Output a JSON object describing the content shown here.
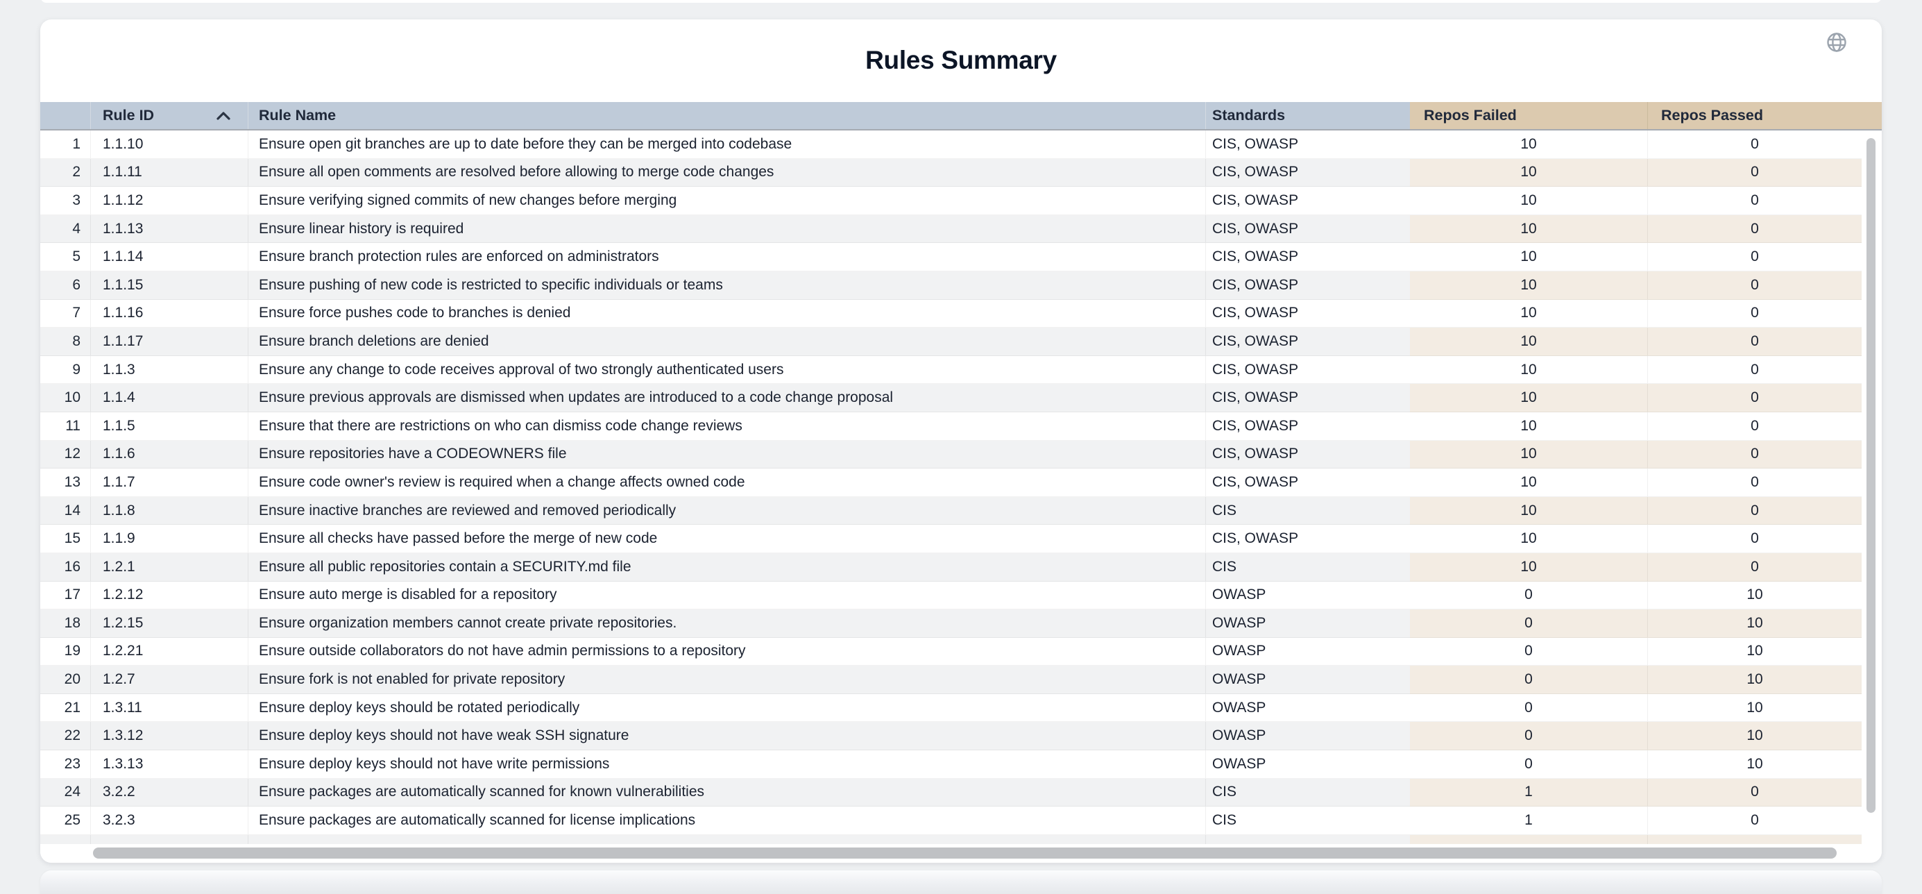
{
  "header": {
    "title": "Rules Summary",
    "globe_icon": "globe"
  },
  "table": {
    "columns": [
      {
        "key": "index",
        "label": ""
      },
      {
        "key": "rule_id",
        "label": "Rule ID",
        "sorted": "asc"
      },
      {
        "key": "rule_name",
        "label": "Rule Name"
      },
      {
        "key": "standards",
        "label": "Standards"
      },
      {
        "key": "repos_failed",
        "label": "Repos Failed"
      },
      {
        "key": "repos_passed",
        "label": "Repos Passed"
      }
    ],
    "rows": [
      {
        "index": 1,
        "rule_id": "1.1.10",
        "rule_name": "Ensure open git branches are up to date before they can be merged into codebase",
        "standards": "CIS, OWASP",
        "repos_failed": 10,
        "repos_passed": 0
      },
      {
        "index": 2,
        "rule_id": "1.1.11",
        "rule_name": "Ensure all open comments are resolved before allowing to merge code changes",
        "standards": "CIS, OWASP",
        "repos_failed": 10,
        "repos_passed": 0
      },
      {
        "index": 3,
        "rule_id": "1.1.12",
        "rule_name": "Ensure verifying signed commits of new changes before merging",
        "standards": "CIS, OWASP",
        "repos_failed": 10,
        "repos_passed": 0
      },
      {
        "index": 4,
        "rule_id": "1.1.13",
        "rule_name": "Ensure linear history is required",
        "standards": "CIS, OWASP",
        "repos_failed": 10,
        "repos_passed": 0
      },
      {
        "index": 5,
        "rule_id": "1.1.14",
        "rule_name": "Ensure branch protection rules are enforced on administrators",
        "standards": "CIS, OWASP",
        "repos_failed": 10,
        "repos_passed": 0
      },
      {
        "index": 6,
        "rule_id": "1.1.15",
        "rule_name": "Ensure pushing of new code is restricted to specific individuals or teams",
        "standards": "CIS, OWASP",
        "repos_failed": 10,
        "repos_passed": 0
      },
      {
        "index": 7,
        "rule_id": "1.1.16",
        "rule_name": "Ensure force pushes code to branches is denied",
        "standards": "CIS, OWASP",
        "repos_failed": 10,
        "repos_passed": 0
      },
      {
        "index": 8,
        "rule_id": "1.1.17",
        "rule_name": "Ensure branch deletions are denied",
        "standards": "CIS, OWASP",
        "repos_failed": 10,
        "repos_passed": 0
      },
      {
        "index": 9,
        "rule_id": "1.1.3",
        "rule_name": "Ensure any change to code receives approval of two strongly authenticated users",
        "standards": "CIS, OWASP",
        "repos_failed": 10,
        "repos_passed": 0
      },
      {
        "index": 10,
        "rule_id": "1.1.4",
        "rule_name": "Ensure previous approvals are dismissed when updates are introduced to a code change proposal",
        "standards": "CIS, OWASP",
        "repos_failed": 10,
        "repos_passed": 0
      },
      {
        "index": 11,
        "rule_id": "1.1.5",
        "rule_name": "Ensure that there are restrictions on who can dismiss code change reviews",
        "standards": "CIS, OWASP",
        "repos_failed": 10,
        "repos_passed": 0
      },
      {
        "index": 12,
        "rule_id": "1.1.6",
        "rule_name": "Ensure repositories have a CODEOWNERS file",
        "standards": "CIS, OWASP",
        "repos_failed": 10,
        "repos_passed": 0
      },
      {
        "index": 13,
        "rule_id": "1.1.7",
        "rule_name": "Ensure code owner's review is required when a change affects owned code",
        "standards": "CIS, OWASP",
        "repos_failed": 10,
        "repos_passed": 0
      },
      {
        "index": 14,
        "rule_id": "1.1.8",
        "rule_name": "Ensure inactive branches are reviewed and removed periodically",
        "standards": "CIS",
        "repos_failed": 10,
        "repos_passed": 0
      },
      {
        "index": 15,
        "rule_id": "1.1.9",
        "rule_name": "Ensure all checks have passed before the merge of new code",
        "standards": "CIS, OWASP",
        "repos_failed": 10,
        "repos_passed": 0
      },
      {
        "index": 16,
        "rule_id": "1.2.1",
        "rule_name": "Ensure all public repositories contain a SECURITY.md file",
        "standards": "CIS",
        "repos_failed": 10,
        "repos_passed": 0
      },
      {
        "index": 17,
        "rule_id": "1.2.12",
        "rule_name": "Ensure auto merge is disabled for a repository",
        "standards": "OWASP",
        "repos_failed": 0,
        "repos_passed": 10
      },
      {
        "index": 18,
        "rule_id": "1.2.15",
        "rule_name": "Ensure organization members cannot create private repositories.",
        "standards": "OWASP",
        "repos_failed": 0,
        "repos_passed": 10
      },
      {
        "index": 19,
        "rule_id": "1.2.21",
        "rule_name": "Ensure outside collaborators do not have admin permissions to a repository",
        "standards": "OWASP",
        "repos_failed": 0,
        "repos_passed": 10
      },
      {
        "index": 20,
        "rule_id": "1.2.7",
        "rule_name": "Ensure fork is not enabled for private repository",
        "standards": "OWASP",
        "repos_failed": 0,
        "repos_passed": 10
      },
      {
        "index": 21,
        "rule_id": "1.3.11",
        "rule_name": "Ensure deploy keys should be rotated periodically",
        "standards": "OWASP",
        "repos_failed": 0,
        "repos_passed": 10
      },
      {
        "index": 22,
        "rule_id": "1.3.12",
        "rule_name": "Ensure deploy keys should not have weak SSH signature",
        "standards": "OWASP",
        "repos_failed": 0,
        "repos_passed": 10
      },
      {
        "index": 23,
        "rule_id": "1.3.13",
        "rule_name": "Ensure deploy keys should not have write permissions",
        "standards": "OWASP",
        "repos_failed": 0,
        "repos_passed": 10
      },
      {
        "index": 24,
        "rule_id": "3.2.2",
        "rule_name": "Ensure packages are automatically scanned for known vulnerabilities",
        "standards": "CIS",
        "repos_failed": 1,
        "repos_passed": 0
      },
      {
        "index": 25,
        "rule_id": "3.2.3",
        "rule_name": "Ensure packages are automatically scanned for license implications",
        "standards": "CIS",
        "repos_failed": 1,
        "repos_passed": 0
      },
      {
        "index": "",
        "rule_id": "",
        "rule_name": "",
        "standards": "",
        "repos_failed": "",
        "repos_passed": ""
      }
    ]
  },
  "colors": {
    "header_blue": "#bfcbd9",
    "header_tan": "#dccaaf",
    "stripe_gray": "#f1f2f3",
    "stripe_beige": "#f3ece3",
    "page_bg": "#eef0f2",
    "text": "#1b2230"
  }
}
